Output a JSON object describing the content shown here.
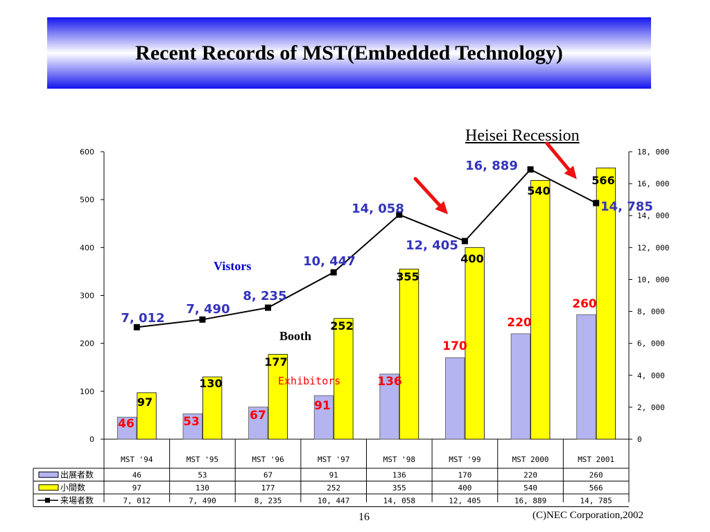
{
  "slide": {
    "title": "Recent Records of MST(Embedded Technology)",
    "recession_label": "Heisei Recession",
    "page_number": "16",
    "copyright": "(C)NEC Corporation,2002"
  },
  "chart_data": {
    "type": "bar",
    "categories": [
      "MST '94",
      "MST '95",
      "MST '96",
      "MST '97",
      "MST '98",
      "MST '99",
      "MST 2000",
      "MST 2001"
    ],
    "series": [
      {
        "name": "出展者数",
        "kind": "bar",
        "axis": "left",
        "color": "#b4b4f0",
        "values": [
          46,
          53,
          67,
          91,
          136,
          170,
          220,
          260
        ],
        "labels": [
          "46",
          "53",
          "67",
          "91",
          "136",
          "170",
          "220",
          "260"
        ],
        "label_color": "#ff0000"
      },
      {
        "name": "小間数",
        "kind": "bar",
        "axis": "left",
        "color": "#ffff00",
        "values": [
          97,
          130,
          177,
          252,
          355,
          400,
          540,
          566
        ],
        "labels": [
          "97",
          "130",
          "177",
          "252",
          "355",
          "400",
          "540",
          "566"
        ],
        "label_color": "#000000"
      },
      {
        "name": "来場者数",
        "kind": "line",
        "axis": "right",
        "color": "#000000",
        "values": [
          7012,
          7490,
          8235,
          10447,
          14058,
          12405,
          16889,
          14785
        ],
        "labels": [
          "7, 012",
          "7, 490",
          "8, 235",
          "10, 447",
          "14, 058",
          "12, 405",
          "16, 889",
          "14, 785"
        ],
        "label_color": "#3333bb"
      }
    ],
    "ylim_left": [
      0,
      600
    ],
    "ylim_right": [
      0,
      18000
    ],
    "yticks_left": [
      "0",
      "100",
      "200",
      "300",
      "400",
      "500",
      "600"
    ],
    "yticks_right": [
      "0",
      "2, 000",
      "4, 000",
      "6, 000",
      "8, 000",
      "10, 000",
      "12, 000",
      "14, 000",
      "16, 000",
      "18, 000"
    ],
    "table_values": [
      [
        "46",
        "53",
        "67",
        "91",
        "136",
        "170",
        "220",
        "260"
      ],
      [
        "97",
        "130",
        "177",
        "252",
        "355",
        "400",
        "540",
        "566"
      ],
      [
        "7, 012",
        "7, 490",
        "8, 235",
        "10, 447",
        "14, 058",
        "12, 405",
        "16, 889",
        "14, 785"
      ]
    ],
    "annotations": [
      {
        "text": "Vistors",
        "color": "#0000cc"
      },
      {
        "text": "Booth",
        "color": "#000000"
      },
      {
        "text": "Exhibitors",
        "color": "#ff0000"
      }
    ],
    "grid": false
  }
}
